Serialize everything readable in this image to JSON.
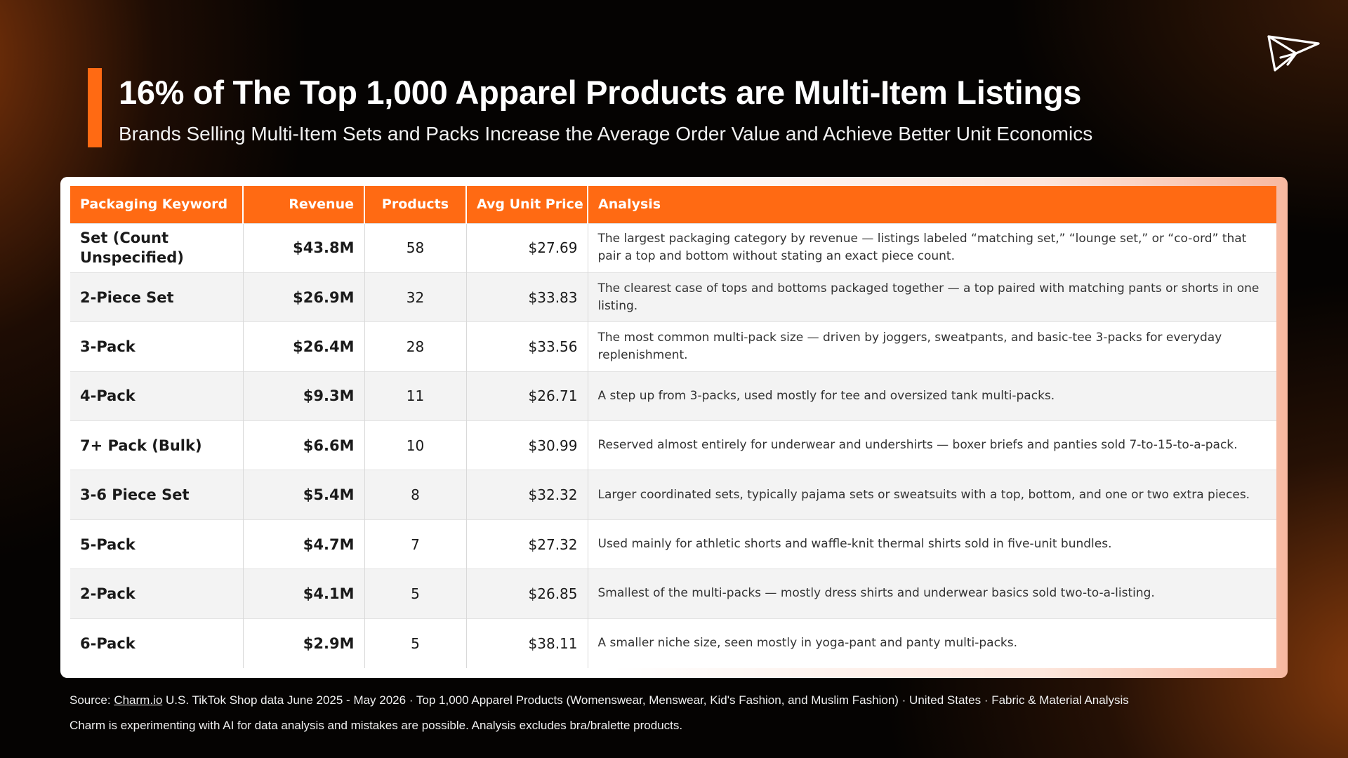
{
  "header": {
    "title": "16% of The Top 1,000 Apparel Products are Multi-Item Listings",
    "subtitle": "Brands Selling Multi-Item Sets and Packs Increase the Average Order Value and Achieve Better Unit Economics"
  },
  "logo": {
    "icon": "paper-plane-icon"
  },
  "colors": {
    "accent": "#ff6a13",
    "background": "#050302",
    "header_text": "#ffffff"
  },
  "table": {
    "columns": [
      "Packaging Keyword",
      "Revenue",
      "Products",
      "Avg Unit Price",
      "Analysis"
    ],
    "rows": [
      {
        "keyword": "Set (Count Unspecified)",
        "revenue": "$43.8M",
        "products": "58",
        "avg_unit_price": "$27.69",
        "analysis": "The largest packaging category by revenue — listings labeled “matching set,” “lounge set,” or “co-ord” that pair a top and bottom without stating an exact piece count."
      },
      {
        "keyword": "2-Piece Set",
        "revenue": "$26.9M",
        "products": "32",
        "avg_unit_price": "$33.83",
        "analysis": "The clearest case of tops and bottoms packaged together — a top paired with matching pants or shorts in one listing."
      },
      {
        "keyword": "3-Pack",
        "revenue": "$26.4M",
        "products": "28",
        "avg_unit_price": "$33.56",
        "analysis": "The most common multi-pack size — driven by joggers, sweatpants, and basic-tee 3-packs for everyday replenishment."
      },
      {
        "keyword": "4-Pack",
        "revenue": "$9.3M",
        "products": "11",
        "avg_unit_price": "$26.71",
        "analysis": "A step up from 3-packs, used mostly for tee and oversized tank multi-packs."
      },
      {
        "keyword": "7+ Pack (Bulk)",
        "revenue": "$6.6M",
        "products": "10",
        "avg_unit_price": "$30.99",
        "analysis": "Reserved almost entirely for underwear and undershirts — boxer briefs and panties sold 7-to-15-to-a-pack."
      },
      {
        "keyword": "3-6 Piece Set",
        "revenue": "$5.4M",
        "products": "8",
        "avg_unit_price": "$32.32",
        "analysis": "Larger coordinated sets, typically pajama sets or sweatsuits with a top, bottom, and one or two extra pieces."
      },
      {
        "keyword": "5-Pack",
        "revenue": "$4.7M",
        "products": "7",
        "avg_unit_price": "$27.32",
        "analysis": "Used mainly for athletic shorts and waffle-knit thermal shirts sold in five-unit bundles."
      },
      {
        "keyword": "2-Pack",
        "revenue": "$4.1M",
        "products": "5",
        "avg_unit_price": "$26.85",
        "analysis": "Smallest of the multi-packs — mostly dress shirts and underwear basics sold two-to-a-listing."
      },
      {
        "keyword": "6-Pack",
        "revenue": "$2.9M",
        "products": "5",
        "avg_unit_price": "$38.11",
        "analysis": "A smaller niche size, seen mostly in yoga-pant and panty multi-packs."
      }
    ]
  },
  "footer": {
    "source_prefix": "Source: ",
    "source_link": "Charm.io",
    "source_text": " U.S. TikTok Shop data June 2025 - May 2026 · Top 1,000 Apparel Products (Womenswear, Menswear, Kid's Fashion, and Muslim Fashion) · United States · Fabric & Material Analysis",
    "disclaimer": "Charm is experimenting with AI for data analysis and mistakes are possible. Analysis excludes bra/bralette products."
  }
}
